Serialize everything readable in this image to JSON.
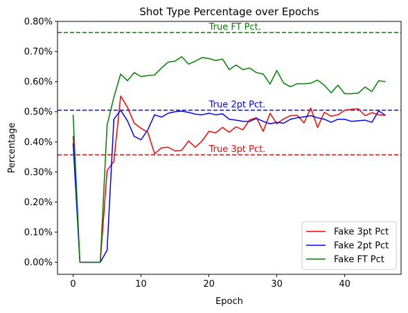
{
  "chart_data": {
    "type": "line",
    "title": "Shot Type Percentage over Epochs",
    "xlabel": "Epoch",
    "ylabel": "Percentage",
    "xlim": [
      -2.3,
      48.3
    ],
    "ylim": [
      -0.0004,
      0.008
    ],
    "x_ticks": [
      0,
      10,
      20,
      30,
      40
    ],
    "y_ticks": [
      0,
      0.001,
      0.002,
      0.003,
      0.004,
      0.005,
      0.006,
      0.007,
      0.008
    ],
    "y_tick_labels": [
      "0.00%",
      "0.10%",
      "0.20%",
      "0.30%",
      "0.40%",
      "0.50%",
      "0.60%",
      "0.70%",
      "0.80%"
    ],
    "x": [
      0,
      1,
      2,
      3,
      4,
      5,
      6,
      7,
      8,
      9,
      10,
      11,
      12,
      13,
      14,
      15,
      16,
      17,
      18,
      19,
      20,
      21,
      22,
      23,
      24,
      25,
      26,
      27,
      28,
      29,
      30,
      31,
      32,
      33,
      34,
      35,
      36,
      37,
      38,
      39,
      40,
      41,
      42,
      43,
      44,
      45,
      46
    ],
    "series": [
      {
        "name": "Fake 3pt Pct",
        "color": "#ff0000",
        "values": [
          0.0042,
          0,
          0,
          0,
          0,
          0.00305,
          0.00335,
          0.00552,
          0.00515,
          0.00462,
          0.00445,
          0.00432,
          0.0036,
          0.0038,
          0.00382,
          0.0037,
          0.00372,
          0.00403,
          0.00382,
          0.00403,
          0.00435,
          0.0043,
          0.00448,
          0.00432,
          0.0045,
          0.0044,
          0.00473,
          0.0048,
          0.00435,
          0.00495,
          0.0046,
          0.00476,
          0.00487,
          0.00488,
          0.00463,
          0.00512,
          0.00448,
          0.00498,
          0.00485,
          0.0049,
          0.00505,
          0.00508,
          0.0051,
          0.00487,
          0.00497,
          0.0049,
          0.00488
        ]
      },
      {
        "name": "Fake 2pt Pct",
        "color": "#0000ff",
        "values": [
          0.00395,
          0,
          0,
          0,
          0,
          0.0004,
          0.00475,
          0.00505,
          0.0047,
          0.00418,
          0.00407,
          0.0044,
          0.0049,
          0.00482,
          0.00495,
          0.005,
          0.00502,
          0.00498,
          0.00492,
          0.0049,
          0.00495,
          0.0049,
          0.00493,
          0.00475,
          0.00472,
          0.00468,
          0.00468,
          0.00478,
          0.00468,
          0.0046,
          0.00465,
          0.00462,
          0.00475,
          0.0048,
          0.00483,
          0.00487,
          0.0048,
          0.00475,
          0.00465,
          0.00475,
          0.00475,
          0.00468,
          0.0047,
          0.00472,
          0.00465,
          0.00503,
          0.00488
        ]
      },
      {
        "name": "Fake FT Pct",
        "color": "#008000",
        "values": [
          0.0049,
          0,
          0,
          0,
          0,
          0.00455,
          0.00548,
          0.00625,
          0.00603,
          0.0063,
          0.00617,
          0.0062,
          0.00622,
          0.00645,
          0.00665,
          0.00668,
          0.00683,
          0.00658,
          0.00668,
          0.0068,
          0.00677,
          0.0067,
          0.00675,
          0.0064,
          0.00655,
          0.0064,
          0.00645,
          0.0063,
          0.00625,
          0.00592,
          0.00637,
          0.00595,
          0.00583,
          0.00593,
          0.00593,
          0.00595,
          0.00605,
          0.00588,
          0.00563,
          0.00588,
          0.0056,
          0.0056,
          0.00562,
          0.00582,
          0.00567,
          0.00603,
          0.006
        ]
      }
    ],
    "reference_lines": [
      {
        "label": "True FT Pct.",
        "y": 0.00763,
        "color": "#008000",
        "label_x": 20
      },
      {
        "label": "True 2pt Pct.",
        "y": 0.00505,
        "color": "#0000ff",
        "label_x": 20
      },
      {
        "label": "True 3pt Pct.",
        "y": 0.00357,
        "color": "#ff0000",
        "label_x": 20
      }
    ],
    "legend_position": "bottom-right",
    "grid": false
  }
}
